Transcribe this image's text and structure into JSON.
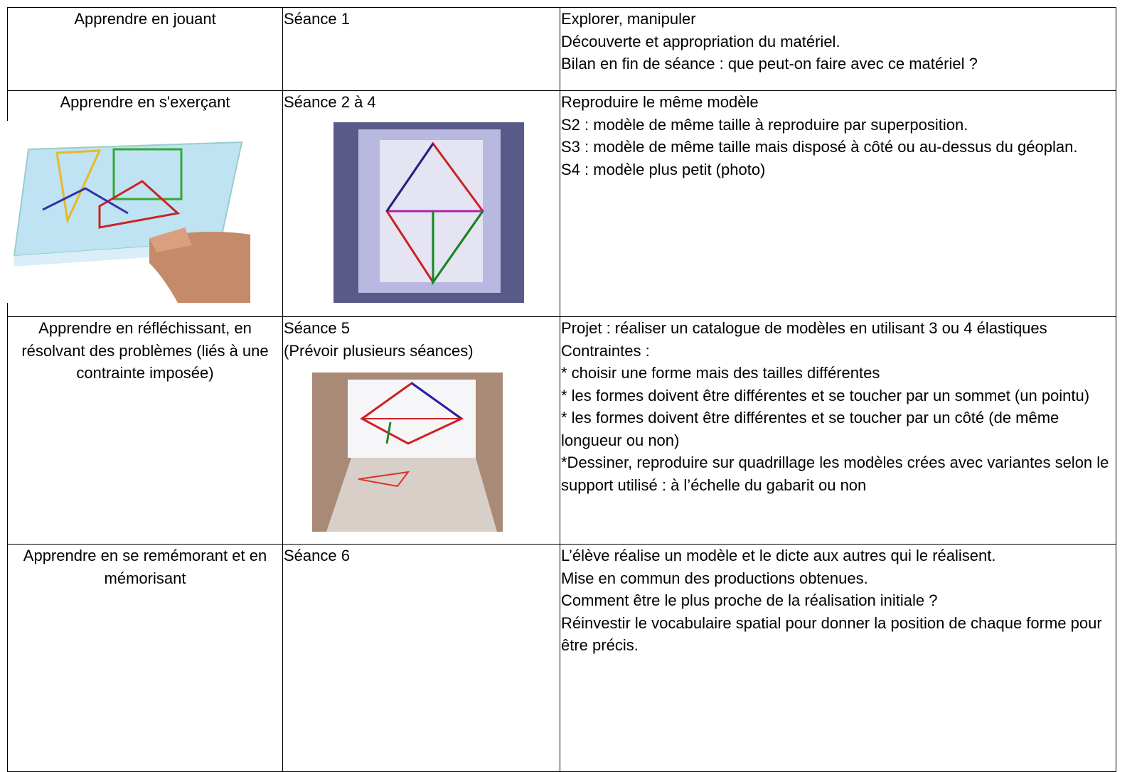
{
  "table": {
    "rows": [
      {
        "label": [
          "Apprendre en jouant"
        ],
        "session": [
          "Séance 1"
        ],
        "content": [
          "Explorer, manipuler",
          "Découverte et appropriation du matériel.",
          "Bilan en fin de séance : que peut-on faire avec ce matériel ?"
        ]
      },
      {
        "label": [
          "Apprendre en s'exerçant"
        ],
        "session": [
          "Séance 2 à 4"
        ],
        "content": [
          "Reproduire le même modèle",
          "S2 : modèle de même taille à reproduire par superposition.",
          "S3 : modèle de même taille mais disposé à côté ou au-dessus du géoplan.",
          "S4 : modèle plus petit (photo)"
        ]
      },
      {
        "label": [
          "Apprendre en réfléchissant, en résolvant des problèmes (liés à une contrainte imposée)"
        ],
        "session": [
          "Séance 5",
          "(Prévoir plusieurs séances)"
        ],
        "content": [
          "Projet : réaliser un catalogue de modèles en utilisant 3 ou 4 élastiques",
          "Contraintes :",
          "* choisir une forme mais des tailles différentes",
          "* les formes doivent être différentes et se toucher par un sommet (un pointu)",
          "* les formes doivent être différentes et se toucher par un côté (de même longueur ou non)",
          "*Dessiner, reproduire sur quadrillage les modèles crées avec variantes selon le support utilisé : à l’échelle du gabarit ou non"
        ]
      },
      {
        "label": [
          "Apprendre en se remémorant et en mémorisant"
        ],
        "session": [
          "Séance 6"
        ],
        "content": [
          "L’élève réalise un modèle et le dicte aux autres qui le réalisent.",
          "Mise en commun des productions obtenues.",
          "Comment être le plus proche de la réalisation initiale ?",
          "Réinvestir le vocabulaire spatial pour donner la position de chaque forme pour être précis."
        ]
      }
    ]
  }
}
